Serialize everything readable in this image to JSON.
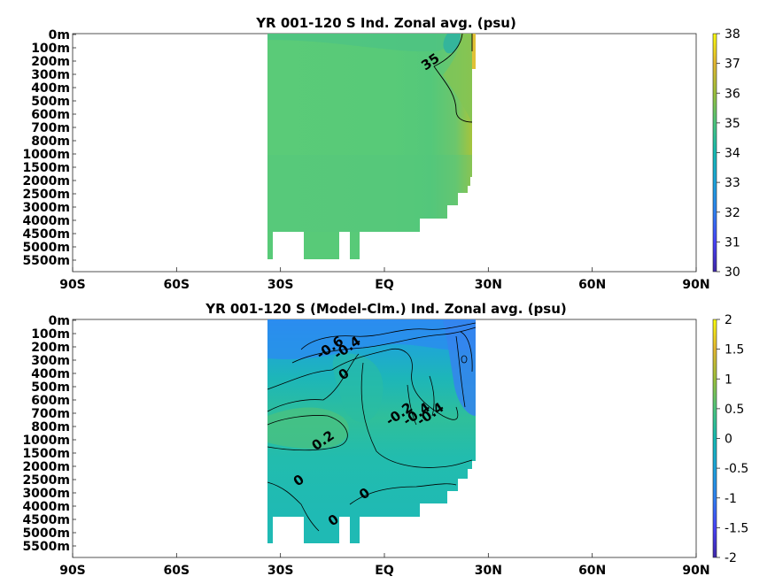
{
  "chart_data": [
    {
      "type": "heatmap",
      "title": "YR 001-120 S Ind. Zonal avg. (psu)",
      "x_ticks": [
        "90S",
        "60S",
        "30S",
        "EQ",
        "30N",
        "60N",
        "90N"
      ],
      "x_values": [
        -90,
        -60,
        -30,
        0,
        30,
        60,
        90
      ],
      "y_ticks": [
        "0m",
        "100m",
        "200m",
        "300m",
        "400m",
        "500m",
        "600m",
        "700m",
        "800m",
        "1000m",
        "1500m",
        "2000m",
        "2500m",
        "3000m",
        "4000m",
        "4500m",
        "5000m",
        "5500m"
      ],
      "colorbar": {
        "min": 30,
        "max": 38,
        "ticks": [
          "30",
          "31",
          "32",
          "33",
          "34",
          "35",
          "36",
          "37",
          "38"
        ]
      },
      "contour_labels": [
        {
          "text": "35",
          "lat": 14,
          "depth": "200m"
        }
      ],
      "value_summary": "Salinity about 34.5-35 psu throughout the Indian Ocean section (about 35S to 25N); higher values (up to about 37) near the surface at about 23N-25N; minimum about 33.5 at the surface near 20N"
    },
    {
      "type": "heatmap",
      "title": "YR 001-120 S (Model-Clm.) Ind. Zonal avg. (psu)",
      "x_ticks": [
        "90S",
        "60S",
        "30S",
        "EQ",
        "30N",
        "60N",
        "90N"
      ],
      "x_values": [
        -90,
        -60,
        -30,
        0,
        30,
        60,
        90
      ],
      "y_ticks": [
        "0m",
        "100m",
        "200m",
        "300m",
        "400m",
        "500m",
        "600m",
        "700m",
        "800m",
        "1000m",
        "1500m",
        "2000m",
        "2500m",
        "3000m",
        "4000m",
        "4500m",
        "5000m",
        "5500m"
      ],
      "colorbar": {
        "min": -2,
        "max": 2,
        "ticks": [
          "-2",
          "-1.5",
          "-1",
          "-0.5",
          "0",
          "0.5",
          "1",
          "1.5",
          "2"
        ]
      },
      "contour_labels": [
        {
          "text": "-0.6",
          "lat": -15,
          "depth": "200m"
        },
        {
          "text": "-0.4",
          "lat": -10,
          "depth": "200m"
        },
        {
          "text": "0",
          "lat": -11,
          "depth": "400m"
        },
        {
          "text": "-0.2",
          "lat": 5,
          "depth": "700m"
        },
        {
          "text": "-0.4",
          "lat": 10,
          "depth": "700m"
        },
        {
          "text": "-0.4",
          "lat": 14,
          "depth": "700m"
        },
        {
          "text": "0.2",
          "lat": -17,
          "depth": "1000m"
        },
        {
          "text": "0",
          "lat": -24,
          "depth": "2500m"
        },
        {
          "text": "0",
          "lat": -5,
          "depth": "3000m"
        },
        {
          "text": "0",
          "lat": -14,
          "depth": "4500m"
        }
      ],
      "value_summary": "Model minus climatology: fresh bias about -0.6 to -0.4 psu in the upper 300m; salty bias about +0.2 around 1000m at 20S-30S; near 0 at depth; strongest negative about -0.8 near 20N-25N at 300m"
    }
  ]
}
